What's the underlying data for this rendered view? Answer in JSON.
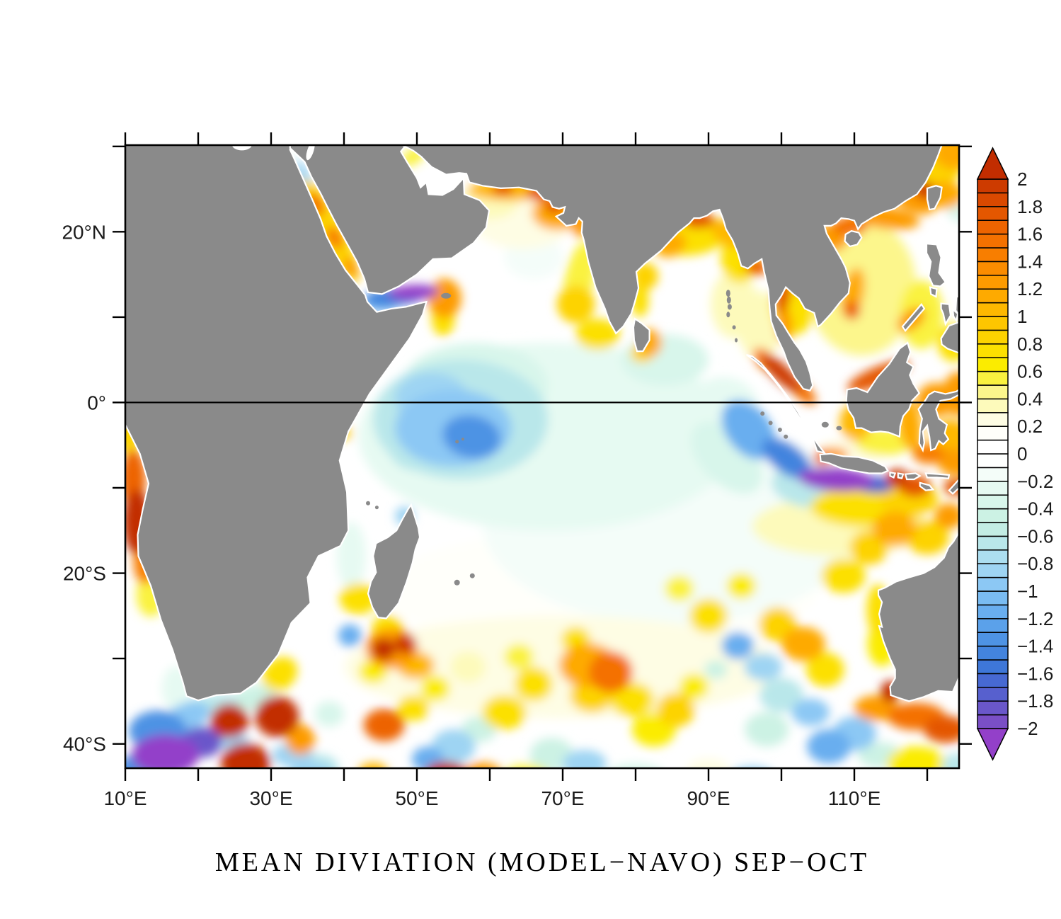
{
  "title": "MEAN DIVIATION (MODEL−NAVO) SEP−OCT",
  "chart_data": {
    "type": "heatmap",
    "title": "MEAN DIVIATION (MODEL−NAVO) SEP−OCT",
    "description": "Filled-contour map of mean deviation (model minus NAVO) over the Indian Ocean; land masked gray; equator drawn as black line",
    "map_extent": {
      "lon_range": [
        10,
        124.4
      ],
      "lat_range": [
        -42.85,
        30.15
      ]
    },
    "grid": false,
    "x_axis": {
      "tick_lons": [
        10,
        20,
        30,
        40,
        50,
        60,
        70,
        80,
        90,
        100,
        110,
        120
      ],
      "tick_labels": [
        "10°E",
        "",
        "30°E",
        "",
        "50°E",
        "",
        "70°E",
        "",
        "90°E",
        "",
        "110°E",
        ""
      ]
    },
    "y_axis": {
      "tick_lats": [
        30,
        20,
        10,
        0,
        -10,
        -20,
        -30,
        -40
      ],
      "tick_labels": [
        "",
        "20°N",
        "",
        "0°",
        "",
        "20°S",
        "",
        "40°S"
      ]
    },
    "equator_line": true,
    "land_color": "#8a8a8a",
    "ocean_base_color": "#ffffff",
    "colorbar": {
      "min": -2,
      "max": 2,
      "cell_step": 0.1,
      "label_step": 0.2,
      "tick_labels": [
        "2",
        "1.8",
        "1.6",
        "1.4",
        "1.2",
        "1",
        "0.8",
        "0.6",
        "0.4",
        "0.2",
        "0",
        "−0.2",
        "−0.4",
        "−0.6",
        "−0.8",
        "−1",
        "−1.2",
        "−1.4",
        "−1.6",
        "−1.8",
        "−2"
      ],
      "over_color": "#C22D00",
      "under_color": "#9340C9",
      "cell_colors_low_to_high": [
        "#7A4FC6",
        "#6A57CA",
        "#5760CE",
        "#4769D2",
        "#3E77D8",
        "#4384DE",
        "#4E93E4",
        "#5BA1EA",
        "#69AEEF",
        "#7ABCF2",
        "#8CC8F4",
        "#9ED4F3",
        "#ACDEF0",
        "#B9E7EA",
        "#C3EDE4",
        "#CCF2E4",
        "#D8F6EB",
        "#E6FAF2",
        "#F4FDF9",
        "#FEFFFE",
        "#FFFFFF",
        "#FFFFFA",
        "#FEFDE4",
        "#FDFABB",
        "#FCF68C",
        "#FAF23F",
        "#FBEC00",
        "#FCE000",
        "#FDD300",
        "#FEC600",
        "#FEB800",
        "#FEAA00",
        "#FD9B00",
        "#FB8C00",
        "#F87E00",
        "#F47100",
        "#ED6400",
        "#E45700",
        "#DA4900",
        "#CD3B00"
      ]
    },
    "features_format": "[lon_deg_E, lat_deg_N, rx_deg, ry_deg, value, rotation_deg]",
    "features": [
      [
        68,
        -4,
        26,
        11,
        -0.3,
        0
      ],
      [
        58,
        2,
        10,
        5,
        -0.4,
        0
      ],
      [
        85,
        -14,
        26,
        12,
        -0.15,
        0
      ],
      [
        84,
        5,
        6,
        3,
        -0.35,
        0
      ],
      [
        92,
        -1,
        5,
        4,
        -0.3,
        0
      ],
      [
        66,
        17,
        4,
        2.5,
        -0.2,
        0
      ],
      [
        75,
        -22,
        30,
        7,
        0.1,
        0
      ],
      [
        70,
        -31,
        30,
        6,
        0.2,
        0
      ],
      [
        56,
        -2,
        12,
        7,
        -0.6,
        0
      ],
      [
        55,
        -3,
        8,
        4.5,
        -1,
        0
      ],
      [
        57.5,
        -4,
        4,
        2.5,
        -1.3,
        10
      ],
      [
        52,
        0.5,
        5,
        3,
        -0.9,
        0
      ],
      [
        60,
        -1.5,
        7,
        3.5,
        -0.6,
        0
      ],
      [
        50,
        -5,
        4,
        3,
        -0.7,
        0
      ],
      [
        47,
        12.4,
        4.2,
        1.1,
        -1.5,
        -3
      ],
      [
        49.5,
        12.9,
        3.5,
        0.9,
        -2.1,
        -3
      ],
      [
        45.3,
        11.9,
        2.8,
        1.2,
        -1.1,
        -3
      ],
      [
        44.3,
        11.9,
        1.1,
        0.8,
        -0.3,
        0
      ],
      [
        53.8,
        12.2,
        2.3,
        2.3,
        1.3,
        0
      ],
      [
        53.6,
        9.8,
        1.6,
        2,
        0.8,
        0
      ],
      [
        37.8,
        20.5,
        8.5,
        1.6,
        0.9,
        62
      ],
      [
        36.1,
        23.2,
        1.7,
        0.9,
        1.5,
        62
      ],
      [
        38.7,
        19.3,
        1.6,
        0.9,
        1.4,
        62
      ],
      [
        40.9,
        15.8,
        1.5,
        0.8,
        1.3,
        62
      ],
      [
        34.3,
        27,
        1.8,
        0.7,
        -0.9,
        62
      ],
      [
        33.4,
        28.8,
        1.3,
        0.6,
        -0.1,
        62
      ],
      [
        49.5,
        28.8,
        1.8,
        0.9,
        0.5,
        -35
      ],
      [
        60,
        23.7,
        4,
        2.2,
        0.4,
        0
      ],
      [
        63,
        24.9,
        6,
        1.3,
        1,
        0
      ],
      [
        61.8,
        25.1,
        1.5,
        0.8,
        1.7,
        0
      ],
      [
        66.8,
        24.6,
        1.7,
        1,
        1.8,
        0
      ],
      [
        69.3,
        22.2,
        3.5,
        2,
        1.1,
        0
      ],
      [
        68.9,
        23,
        1.4,
        0.9,
        1.8,
        0
      ],
      [
        72.4,
        20.9,
        1.3,
        1.5,
        1.3,
        0
      ],
      [
        64.5,
        21.5,
        7,
        3.5,
        0.3,
        0
      ],
      [
        72.3,
        14.5,
        2,
        4.5,
        0.5,
        12
      ],
      [
        71.8,
        11.5,
        2.6,
        2.2,
        0.9,
        0
      ],
      [
        74.8,
        8,
        3,
        1.8,
        0.7,
        0
      ],
      [
        82,
        7,
        1.6,
        1.6,
        1.1,
        0
      ],
      [
        80.9,
        5.7,
        1.6,
        1,
        0.9,
        0
      ],
      [
        86.5,
        19.8,
        6,
        2.6,
        0.7,
        0
      ],
      [
        88.6,
        21.4,
        2.2,
        1,
        1.8,
        0
      ],
      [
        84.8,
        18.5,
        2.2,
        1.4,
        1.1,
        -25
      ],
      [
        81.3,
        14.8,
        1.8,
        1.6,
        0.9,
        0
      ],
      [
        80.6,
        12,
        1.2,
        2,
        0.7,
        0
      ],
      [
        94.3,
        17,
        2.6,
        3,
        0.8,
        0
      ],
      [
        96.6,
        15.9,
        1.6,
        1,
        1.6,
        0
      ],
      [
        92.6,
        19.8,
        1.6,
        2.2,
        1,
        -55
      ],
      [
        93.5,
        11.5,
        3.2,
        4,
        0.4,
        0
      ],
      [
        97,
        9,
        3,
        4,
        0.4,
        0
      ],
      [
        100,
        3.4,
        3.6,
        1,
        1.9,
        43
      ],
      [
        102.7,
        1.4,
        2.6,
        0.9,
        1.5,
        43
      ],
      [
        97.9,
        4.9,
        2.2,
        1,
        1.4,
        43
      ],
      [
        101.6,
        11.3,
        3,
        3.4,
        0.8,
        0
      ],
      [
        100.2,
        12.8,
        1.1,
        2.4,
        1.7,
        8
      ],
      [
        100.4,
        9,
        1.1,
        2,
        1.2,
        0
      ],
      [
        111,
        13.5,
        7.5,
        8,
        0.45,
        0
      ],
      [
        112.5,
        16.5,
        4.5,
        3,
        0.05,
        0
      ],
      [
        109.8,
        12.8,
        1.5,
        3,
        1.1,
        12
      ],
      [
        109.7,
        10.8,
        1.1,
        1.1,
        1.6,
        0
      ],
      [
        107,
        19.3,
        2.2,
        1.6,
        1.2,
        0
      ],
      [
        109.3,
        20.6,
        2.4,
        1.1,
        1.5,
        0
      ],
      [
        114,
        21.7,
        5,
        1.3,
        1.2,
        8
      ],
      [
        118,
        23.7,
        3.2,
        1.3,
        1.3,
        25
      ],
      [
        119.6,
        24.9,
        1.6,
        1,
        1.9,
        30
      ],
      [
        122.4,
        24.3,
        2.6,
        1.6,
        1.1,
        0
      ],
      [
        121.5,
        27.5,
        3.2,
        2.2,
        0.9,
        0
      ],
      [
        123.8,
        29.5,
        3,
        2.2,
        1.1,
        0
      ],
      [
        124.5,
        22.3,
        1.6,
        1.1,
        -0.4,
        0
      ],
      [
        119.2,
        10.3,
        3,
        4,
        0.55,
        0
      ],
      [
        117.8,
        9.7,
        2.2,
        1.1,
        1.2,
        -38
      ],
      [
        123.6,
        7,
        2.2,
        2.2,
        0.8,
        0
      ],
      [
        113.3,
        3.1,
        4.6,
        1.1,
        1.8,
        -23
      ],
      [
        110.2,
        -2.3,
        2.2,
        2.2,
        1,
        0
      ],
      [
        117.6,
        -2.6,
        1.6,
        3,
        1.1,
        -8
      ],
      [
        114,
        -4.6,
        4,
        1.6,
        0.55,
        0
      ],
      [
        121.2,
        0.3,
        2.6,
        2,
        1.3,
        0
      ],
      [
        123.2,
        -4,
        2.6,
        2,
        1,
        0
      ],
      [
        120.2,
        -6,
        2.2,
        1.2,
        1.4,
        0
      ],
      [
        124.3,
        1,
        2.2,
        2.6,
        1.2,
        0
      ],
      [
        124,
        -7,
        2.6,
        1.6,
        1.3,
        0
      ],
      [
        124.2,
        -9.9,
        2,
        1,
        1.8,
        0
      ],
      [
        95.5,
        -3.2,
        4.6,
        2.6,
        -1.1,
        52
      ],
      [
        100.8,
        -6.6,
        4,
        1.7,
        -1.5,
        35
      ],
      [
        107.5,
        -9,
        5.2,
        1.4,
        -2.2,
        4
      ],
      [
        112.5,
        -9.6,
        3,
        1,
        -1.6,
        4
      ],
      [
        103,
        -10,
        4.5,
        2.2,
        -0.6,
        15
      ],
      [
        92.5,
        -6.5,
        6,
        3,
        -0.4,
        45
      ],
      [
        107,
        -6.1,
        2.2,
        0.8,
        1.3,
        0
      ],
      [
        105.5,
        -6.5,
        1,
        0.9,
        1.6,
        0
      ],
      [
        110,
        -5.6,
        5,
        1.4,
        0.3,
        0
      ],
      [
        115.9,
        -8.9,
        1.6,
        1.1,
        1.9,
        0
      ],
      [
        118.3,
        -9.8,
        2.2,
        1.3,
        1.7,
        0
      ],
      [
        112,
        -12.2,
        8,
        2.4,
        0.7,
        0
      ],
      [
        117.5,
        -11.3,
        4,
        2,
        0.9,
        0
      ],
      [
        108,
        -14.5,
        12,
        3.5,
        0.4,
        0
      ],
      [
        10.6,
        -3.5,
        1.6,
        2.6,
        0.9,
        0
      ],
      [
        11.1,
        -9,
        1.7,
        3.5,
        1.6,
        0
      ],
      [
        11.6,
        -14,
        1.9,
        3.8,
        2.1,
        0
      ],
      [
        12.7,
        -18.5,
        1.6,
        2.8,
        1.4,
        0
      ],
      [
        13.5,
        -22.5,
        2,
        2.6,
        0.5,
        0
      ],
      [
        40.3,
        -3.6,
        0.8,
        0.8,
        0.9,
        0
      ],
      [
        41,
        -18,
        2,
        4,
        -0.25,
        0
      ],
      [
        48.3,
        -13.3,
        1.3,
        1.1,
        -0.9,
        0
      ],
      [
        42,
        -23,
        2.6,
        1.8,
        0.7,
        0
      ],
      [
        40.8,
        -27.3,
        1.6,
        1.3,
        -1.1,
        0
      ],
      [
        46,
        -26.5,
        2.2,
        1.6,
        0.8,
        0
      ],
      [
        46.5,
        -28.8,
        3.6,
        2.4,
        1.3,
        0
      ],
      [
        45.4,
        -28.9,
        1.6,
        1.3,
        2.1,
        0
      ],
      [
        48.4,
        -28.3,
        1.5,
        1.2,
        1.9,
        0
      ],
      [
        49.8,
        -30.8,
        2.6,
        1.6,
        1,
        0
      ],
      [
        44,
        -31.5,
        2,
        1.4,
        0.6,
        0
      ],
      [
        31.2,
        -31.8,
        2.6,
        1.8,
        0.8,
        -40
      ],
      [
        27.5,
        -34.6,
        3.2,
        1.4,
        -0.5,
        -15
      ],
      [
        21.5,
        -35.4,
        4.2,
        1.1,
        -0.6,
        -8
      ],
      [
        17,
        -33.5,
        2,
        2.6,
        -0.3,
        0
      ],
      [
        18.5,
        -36.8,
        3.2,
        1.6,
        -1,
        -18
      ],
      [
        14.5,
        -38.5,
        4,
        2.4,
        -1.3,
        0
      ],
      [
        15.5,
        -41.3,
        4.6,
        2.4,
        -2.2,
        0
      ],
      [
        20.5,
        -39.8,
        2.8,
        1.8,
        -1.9,
        0
      ],
      [
        11.5,
        -43,
        2.6,
        1.8,
        -1.4,
        0
      ],
      [
        24.3,
        -37.3,
        2.6,
        2,
        2.2,
        0
      ],
      [
        26.5,
        -42.3,
        3.4,
        2.4,
        2.3,
        0
      ],
      [
        30.8,
        -36.8,
        3,
        2.4,
        2.2,
        0
      ],
      [
        34,
        -39.5,
        2,
        1.8,
        1.2,
        0
      ],
      [
        25,
        -39.8,
        2,
        1.1,
        -0.8,
        0
      ],
      [
        33,
        -41.3,
        2.8,
        1.4,
        -0.9,
        0
      ],
      [
        36.5,
        -42.8,
        2.8,
        1.6,
        -0.7,
        0
      ],
      [
        38,
        -36.5,
        2,
        1.5,
        -0.4,
        0
      ],
      [
        45.5,
        -37.8,
        2.8,
        1.9,
        1.6,
        0
      ],
      [
        49.5,
        -35.8,
        2.2,
        1.5,
        0.8,
        0
      ],
      [
        54,
        -43.6,
        3,
        1.5,
        2.2,
        0
      ],
      [
        59,
        -43.4,
        2.6,
        1.2,
        1.3,
        0
      ],
      [
        55,
        -40.3,
        3,
        2,
        -0.9,
        0
      ],
      [
        51.5,
        -41.8,
        2.2,
        1.5,
        -1.2,
        0
      ],
      [
        58.5,
        -38.3,
        2.4,
        1.5,
        -0.5,
        0
      ],
      [
        62,
        -36.3,
        3,
        2,
        0.8,
        0
      ],
      [
        66,
        -33,
        2.6,
        2,
        0.7,
        0
      ],
      [
        64,
        -29.8,
        2,
        1.5,
        0.5,
        0
      ],
      [
        57,
        -31,
        2.4,
        1.8,
        0.4,
        0
      ],
      [
        52.5,
        -33.5,
        2,
        1.5,
        0.6,
        0
      ],
      [
        73.5,
        -30.8,
        4,
        2.6,
        1.1,
        0
      ],
      [
        76.6,
        -31.6,
        3,
        2.4,
        1.5,
        0
      ],
      [
        74,
        -34.3,
        3,
        2,
        0.9,
        0
      ],
      [
        79.5,
        -34.8,
        3,
        2,
        0.8,
        0
      ],
      [
        71.8,
        -27.8,
        2,
        1.5,
        0.8,
        0
      ],
      [
        68.5,
        -41.3,
        3,
        2,
        -0.5,
        0
      ],
      [
        73,
        -42.3,
        3,
        1.6,
        -0.8,
        0
      ],
      [
        82.5,
        -38.3,
        3,
        2,
        0.6,
        0
      ],
      [
        85.5,
        -36,
        2.6,
        2,
        0.9,
        0
      ],
      [
        88,
        -33.3,
        2,
        1.5,
        0.6,
        0
      ],
      [
        94,
        -28.5,
        2.2,
        1.6,
        -1.2,
        0
      ],
      [
        97.5,
        -31,
        2.6,
        1.6,
        -0.8,
        0
      ],
      [
        91,
        -31.3,
        1.6,
        1.1,
        -0.5,
        0
      ],
      [
        90,
        -25,
        2.6,
        2,
        0.7,
        0
      ],
      [
        86,
        -21.8,
        2,
        1.5,
        0.5,
        0
      ],
      [
        94.5,
        -21.5,
        2,
        1.5,
        0.6,
        0
      ],
      [
        99.5,
        -26,
        2.6,
        2,
        0.9,
        0
      ],
      [
        103,
        -28.3,
        3,
        2,
        1.1,
        0
      ],
      [
        106,
        -31.3,
        2.6,
        2,
        0.8,
        0
      ],
      [
        100,
        -34.3,
        3,
        2,
        -0.6,
        0
      ],
      [
        104,
        -36.3,
        2.6,
        1.6,
        -1,
        0
      ],
      [
        98,
        -38.3,
        3,
        2,
        -0.5,
        0
      ],
      [
        108.5,
        -20.3,
        3,
        2,
        0.7,
        0
      ],
      [
        112,
        -17,
        2.6,
        2,
        0.9,
        0
      ],
      [
        115.5,
        -14.8,
        3,
        2,
        1.1,
        0
      ],
      [
        120,
        -15.8,
        3,
        2,
        0.9,
        0
      ],
      [
        123,
        -13.3,
        2,
        1.5,
        1.2,
        0
      ],
      [
        113.2,
        -24.3,
        1.5,
        3,
        0.8,
        0
      ],
      [
        113.8,
        -28.3,
        2,
        2.6,
        0.6,
        0
      ],
      [
        114.9,
        -33.9,
        1.3,
        1.3,
        2.1,
        0
      ],
      [
        113,
        -35.8,
        3,
        1.5,
        1.3,
        0
      ],
      [
        118.5,
        -36.8,
        4,
        1.6,
        1.5,
        0
      ],
      [
        122.5,
        -38.3,
        3,
        1.6,
        1.8,
        0
      ],
      [
        110,
        -38.8,
        3,
        2,
        -1,
        0
      ],
      [
        106.5,
        -40.3,
        3,
        2,
        -1.2,
        0
      ],
      [
        113.5,
        -41.3,
        3,
        1.5,
        -0.5,
        0
      ],
      [
        118.5,
        -42.3,
        4,
        2,
        0.6,
        0
      ],
      [
        124,
        -42.6,
        2,
        1.5,
        -0.7,
        0
      ],
      [
        35.5,
        -43.6,
        3,
        1.5,
        -0.8,
        0
      ],
      [
        44,
        -43.2,
        2,
        1,
        1,
        0
      ],
      [
        65,
        -43.6,
        3,
        1.2,
        0.5,
        0
      ],
      [
        80,
        -43.8,
        4,
        1.5,
        -0.4,
        0
      ],
      [
        90,
        -43.2,
        3,
        1.5,
        0.3,
        0
      ],
      [
        96,
        -43.8,
        3,
        1.2,
        -0.9,
        0
      ]
    ]
  }
}
